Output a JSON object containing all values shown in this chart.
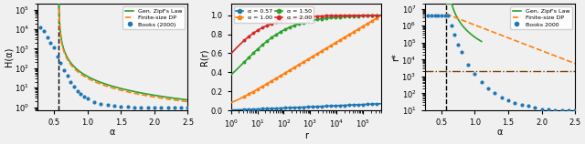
{
  "panel1": {
    "xlabel": "α",
    "ylabel": "H(α)",
    "xlim": [
      0.25,
      2.5
    ],
    "ylim": [
      0.7,
      200000.0
    ],
    "vline": 0.57,
    "legend": [
      "Gen. Zipf's Law",
      "Finite-size DP",
      "Books (2000)"
    ],
    "line_colors": [
      "#2ca02c",
      "#ff7f0e"
    ],
    "dot_color": "#1f77b4",
    "alpha_data": [
      0.3,
      0.35,
      0.4,
      0.45,
      0.5,
      0.55,
      0.6,
      0.65,
      0.7,
      0.75,
      0.8,
      0.85,
      0.9,
      0.95,
      1.0,
      1.1,
      1.2,
      1.3,
      1.4,
      1.5,
      1.6,
      1.7,
      1.8,
      1.9,
      2.0,
      2.1,
      2.2,
      2.3,
      2.4,
      2.5
    ],
    "H_data": [
      12000.0,
      8000.0,
      4000.0,
      2000.0,
      1200.0,
      400.0,
      180.0,
      80,
      40,
      20,
      12,
      7,
      5,
      3.5,
      2.8,
      1.9,
      1.5,
      1.3,
      1.15,
      1.08,
      1.04,
      1.02,
      1.01,
      1.005,
      1.003,
      1.002,
      1.001,
      1.001,
      1.0,
      1.0
    ]
  },
  "panel2": {
    "xlabel": "r",
    "ylabel": "R(r)",
    "xlim": [
      1,
      500000.0
    ],
    "ylim": [
      0.0,
      1.12
    ],
    "alphas": [
      0.57,
      1.0,
      1.5,
      2.0
    ],
    "colors": [
      "#1f77b4",
      "#ff7f0e",
      "#2ca02c",
      "#d62728"
    ],
    "legend_labels": [
      "α = 0.57",
      "α = 1.00",
      "α = 1.50",
      "α = 2.00"
    ],
    "yticks": [
      0.0,
      0.2,
      0.4,
      0.6,
      0.8,
      1.0
    ]
  },
  "panel3": {
    "xlabel": "α",
    "ylabel": "r*",
    "xlim": [
      0.25,
      2.5
    ],
    "ylim": [
      10,
      20000000.0
    ],
    "vline": 0.57,
    "hline": 2000,
    "legend": [
      "Gen. Zipf's Law",
      "Finite-size DP",
      "Books 2000"
    ],
    "line_colors": [
      "#2ca02c",
      "#ff7f0e"
    ],
    "dot_color": "#1f77b4",
    "hline_color": "#7f3f00",
    "alpha_data": [
      0.3,
      0.35,
      0.4,
      0.45,
      0.5,
      0.55,
      0.6,
      0.65,
      0.7,
      0.75,
      0.8,
      0.9,
      1.0,
      1.1,
      1.2,
      1.3,
      1.4,
      1.5,
      1.6,
      1.7,
      1.8,
      1.9,
      2.0,
      2.1,
      2.2,
      2.3,
      2.4,
      2.5
    ],
    "rstar_data": [
      4000000.0,
      4000000.0,
      4000000.0,
      4000000.0,
      4000000.0,
      4000000.0,
      4000000.0,
      1000000.0,
      300000.0,
      80000.0,
      30000.0,
      5000.0,
      1500.0,
      500.0,
      200.0,
      100.0,
      60,
      40,
      28,
      22,
      18,
      15,
      12,
      11,
      10,
      10,
      10,
      10
    ]
  },
  "bg_color": "#f0f0f0",
  "fontsize": 7,
  "tick_fontsize": 6
}
